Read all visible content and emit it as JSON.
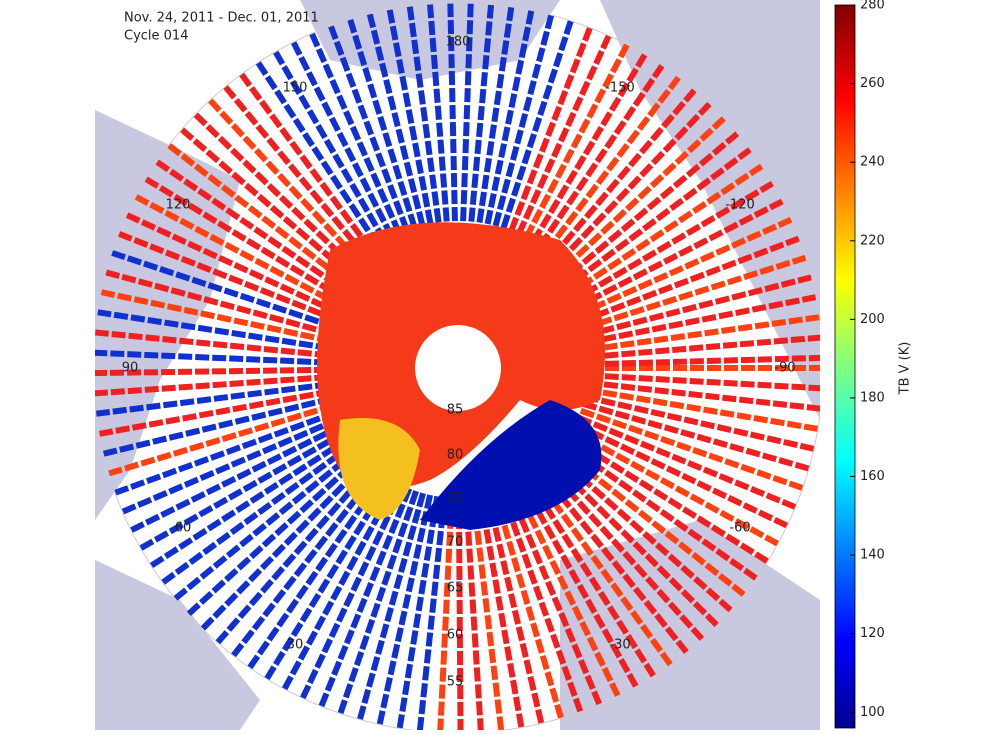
{
  "header": {
    "date_range": "Nov. 24, 2011 - Dec. 01, 2011",
    "cycle": "Cycle 014"
  },
  "map": {
    "meridian_labels": [
      "180",
      "-150",
      "150",
      "-120",
      "120",
      "-90",
      "90",
      "-60",
      "60",
      "-30",
      "30"
    ],
    "parallel_labels": [
      "85",
      "80",
      "75",
      "70",
      "65",
      "60",
      "55"
    ]
  },
  "colorbar": {
    "label": "TB V (K)",
    "lim": [
      96,
      280
    ],
    "ticks": [
      100,
      120,
      140,
      160,
      180,
      200,
      220,
      240,
      260,
      280
    ]
  }
}
